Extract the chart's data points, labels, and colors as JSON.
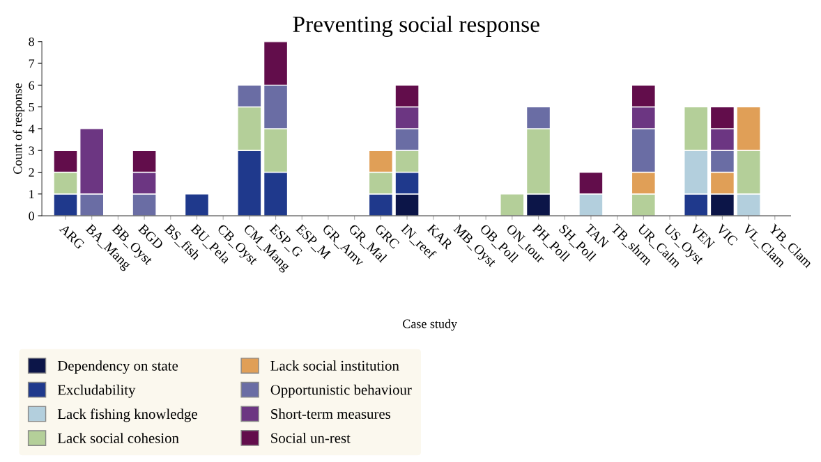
{
  "chart_data": {
    "type": "bar",
    "title": "Preventing social response",
    "xlabel": "Case study",
    "ylabel": "Count of response",
    "categories": [
      "ARG",
      "BA_Mang",
      "BB_Oyst",
      "BGD",
      "BS_fish",
      "BU_Pela",
      "CB_Oyst",
      "CM_Mang",
      "ESP_G",
      "ESP_M",
      "GR_Amv",
      "GR_Mal",
      "GRC",
      "IN_reef",
      "KAR",
      "MB_Oyst",
      "OB_Poll",
      "ON_tour",
      "PH_Poll",
      "SH_Poll",
      "TAN",
      "TB_shrm",
      "UR_Calm",
      "US_Oyst",
      "VEN",
      "VIC",
      "VL_Clam",
      "YB_Clam"
    ],
    "stacked": true,
    "ylim": [
      0,
      8
    ],
    "yticks": [
      0,
      1,
      2,
      3,
      4,
      5,
      6,
      7,
      8
    ],
    "grid": false,
    "legend": "bottom",
    "series": [
      {
        "name": "Dependency on state",
        "color": "#0c1548",
        "values": [
          0,
          0,
          0,
          0,
          0,
          0,
          0,
          0,
          0,
          0,
          0,
          0,
          0,
          1,
          0,
          0,
          0,
          0,
          1,
          0,
          0,
          0,
          0,
          0,
          0,
          1,
          0,
          0
        ]
      },
      {
        "name": "Excludability",
        "color": "#1f398c",
        "values": [
          1,
          0,
          0,
          0,
          0,
          1,
          0,
          3,
          2,
          0,
          0,
          0,
          1,
          1,
          0,
          0,
          0,
          0,
          0,
          0,
          0,
          0,
          0,
          0,
          1,
          0,
          0,
          0
        ]
      },
      {
        "name": "Lack fishing knowledge",
        "color": "#b3cfdd",
        "values": [
          0,
          0,
          0,
          0,
          0,
          0,
          0,
          0,
          0,
          0,
          0,
          0,
          0,
          0,
          0,
          0,
          0,
          0,
          0,
          0,
          1,
          0,
          0,
          0,
          2,
          0,
          1,
          0
        ]
      },
      {
        "name": "Lack social cohesion",
        "color": "#b4cf99",
        "values": [
          1,
          0,
          0,
          0,
          0,
          0,
          0,
          2,
          2,
          0,
          0,
          0,
          1,
          1,
          0,
          0,
          0,
          1,
          3,
          0,
          0,
          0,
          1,
          0,
          2,
          0,
          2,
          0
        ]
      },
      {
        "name": "Lack social institution",
        "color": "#e09f57",
        "values": [
          0,
          0,
          0,
          0,
          0,
          0,
          0,
          0,
          0,
          0,
          0,
          0,
          1,
          0,
          0,
          0,
          0,
          0,
          0,
          0,
          0,
          0,
          1,
          0,
          0,
          1,
          2,
          0
        ]
      },
      {
        "name": "Opportunistic behaviour",
        "color": "#6a6da4",
        "values": [
          0,
          1,
          0,
          1,
          0,
          0,
          0,
          1,
          2,
          0,
          0,
          0,
          0,
          1,
          0,
          0,
          0,
          0,
          1,
          0,
          0,
          0,
          2,
          0,
          0,
          1,
          0,
          0
        ]
      },
      {
        "name": "Short-term measures",
        "color": "#6c3682",
        "values": [
          0,
          3,
          0,
          1,
          0,
          0,
          0,
          0,
          0,
          0,
          0,
          0,
          0,
          1,
          0,
          0,
          0,
          0,
          0,
          0,
          0,
          0,
          1,
          0,
          0,
          1,
          0,
          0
        ]
      },
      {
        "name": "Social un-rest",
        "color": "#620d4b",
        "values": [
          1,
          0,
          0,
          1,
          0,
          0,
          0,
          0,
          2,
          0,
          0,
          0,
          0,
          1,
          0,
          0,
          0,
          0,
          0,
          0,
          1,
          0,
          1,
          0,
          0,
          1,
          0,
          0
        ]
      }
    ]
  }
}
